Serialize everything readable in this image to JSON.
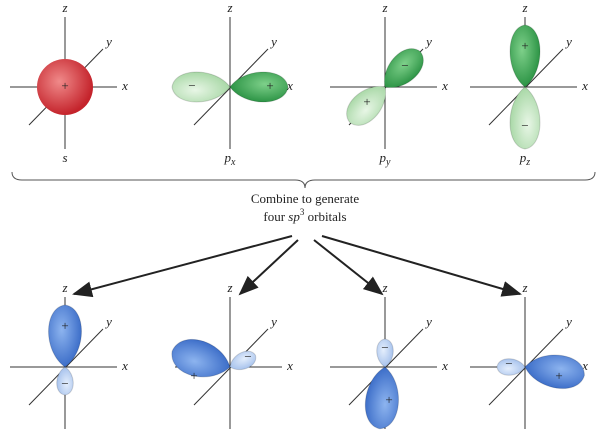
{
  "top_orbitals": [
    {
      "axes": {
        "z": "z",
        "y": "y",
        "x": "x"
      },
      "signs": [
        "+"
      ],
      "label": {
        "base": "s"
      }
    },
    {
      "axes": {
        "z": "z",
        "y": "y",
        "x": "x"
      },
      "signs": [
        "−",
        "+"
      ],
      "label": {
        "base": "p",
        "sub": "x"
      }
    },
    {
      "axes": {
        "z": "z",
        "y": "y",
        "x": "x"
      },
      "signs": [
        "−",
        "+"
      ],
      "label": {
        "base": "p",
        "sub": "y"
      }
    },
    {
      "axes": {
        "z": "z",
        "y": "y",
        "x": "x"
      },
      "signs": [
        "+",
        "−"
      ],
      "label": {
        "base": "p",
        "sub": "z"
      }
    }
  ],
  "caption": {
    "line1": "Combine to generate",
    "line2": [
      "four ",
      "sp",
      "3",
      " orbitals"
    ]
  },
  "bottom_orbitals": [
    {
      "axes": {
        "z": "z",
        "y": "y",
        "x": "x"
      },
      "signs": [
        "+",
        "−"
      ]
    },
    {
      "axes": {
        "z": "z",
        "y": "y",
        "x": "x"
      },
      "signs": [
        "+",
        "−"
      ]
    },
    {
      "axes": {
        "z": "z",
        "y": "y",
        "x": "x"
      },
      "signs": [
        "+",
        "−"
      ]
    },
    {
      "axes": {
        "z": "z",
        "y": "y",
        "x": "x"
      },
      "signs": [
        "+",
        "−"
      ]
    }
  ]
}
